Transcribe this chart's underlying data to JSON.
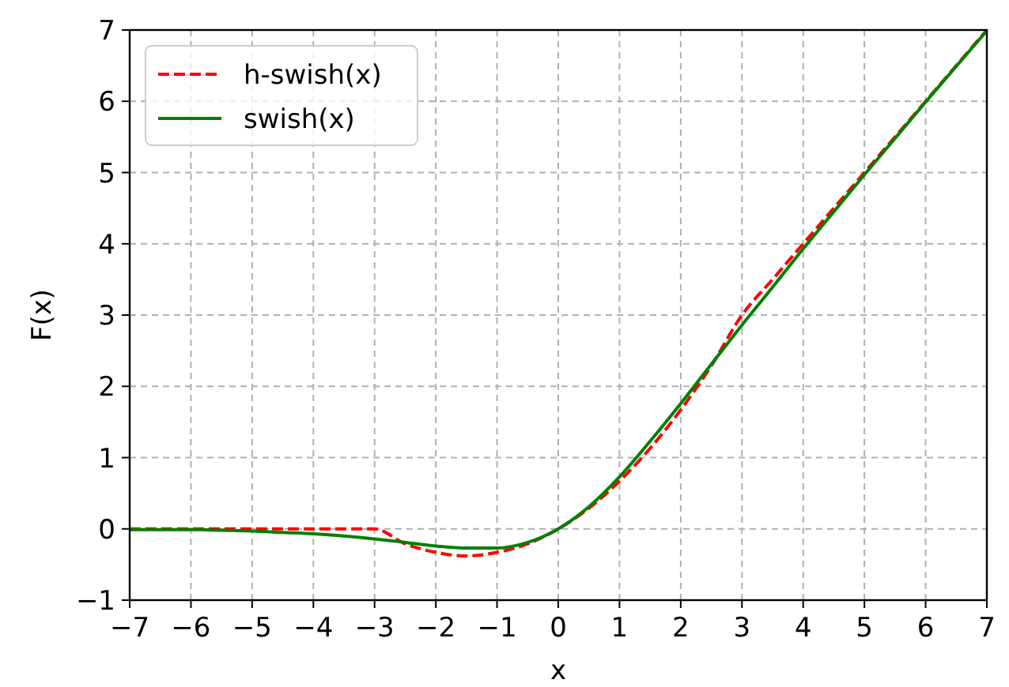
{
  "chart_data": {
    "type": "line",
    "xlabel": "x",
    "ylabel": "F(x)",
    "x": [
      -7,
      -6.5,
      -6,
      -5.5,
      -5,
      -4.5,
      -4,
      -3.5,
      -3,
      -2.5,
      -2,
      -1.5,
      -1,
      -0.5,
      0,
      0.5,
      1,
      1.5,
      2,
      2.5,
      3,
      3.5,
      4,
      4.5,
      5,
      5.5,
      6,
      6.5,
      7
    ],
    "series": [
      {
        "name": "h-swish(x)",
        "color": "#ff0000",
        "line_style": "dashed",
        "values": [
          0,
          0,
          0,
          0,
          0,
          0,
          0,
          0,
          0,
          -0.21,
          -0.33,
          -0.38,
          -0.33,
          -0.21,
          0,
          0.29,
          0.67,
          1.13,
          1.67,
          2.29,
          3,
          3.5,
          4,
          4.5,
          5,
          5.5,
          6,
          6.5,
          7
        ]
      },
      {
        "name": "swish(x)",
        "color": "#008000",
        "line_style": "solid",
        "values": [
          -0.01,
          -0.01,
          -0.01,
          -0.02,
          -0.03,
          -0.05,
          -0.07,
          -0.1,
          -0.14,
          -0.19,
          -0.24,
          -0.27,
          -0.27,
          -0.19,
          0,
          0.31,
          0.73,
          1.23,
          1.76,
          2.31,
          2.86,
          3.39,
          3.93,
          4.45,
          4.97,
          5.48,
          5.99,
          6.49,
          6.99
        ]
      }
    ],
    "xlim": [
      -7,
      7
    ],
    "xticks": [
      -7,
      -6,
      -5,
      -4,
      -3,
      -2,
      -1,
      0,
      1,
      2,
      3,
      4,
      5,
      6,
      7
    ],
    "ylim": [
      -1,
      7
    ],
    "yticks": [
      -1,
      0,
      1,
      2,
      3,
      4,
      5,
      6,
      7
    ],
    "grid": true,
    "legend": "top left",
    "marker": "none"
  }
}
